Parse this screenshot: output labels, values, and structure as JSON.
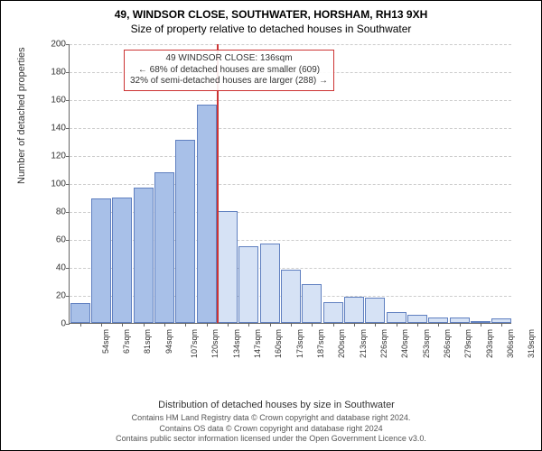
{
  "title_line1": "49, WINDSOR CLOSE, SOUTHWATER, HORSHAM, RH13 9XH",
  "title_line2": "Size of property relative to detached houses in Southwater",
  "chart": {
    "type": "bar",
    "ylabel": "Number of detached properties",
    "xlabel": "Distribution of detached houses by size in Southwater",
    "ylim": [
      0,
      200
    ],
    "ytick_step": 20,
    "background_color": "#ffffff",
    "grid_color": "#cccccc",
    "bar_fill_normal": "#d6e2f5",
    "bar_fill_highlight": "#a8c0e8",
    "bar_border": "#6080c0",
    "refline_color": "#cc3333",
    "categories": [
      "54sqm",
      "67sqm",
      "81sqm",
      "94sqm",
      "107sqm",
      "120sqm",
      "134sqm",
      "147sqm",
      "160sqm",
      "173sqm",
      "187sqm",
      "200sqm",
      "213sqm",
      "226sqm",
      "240sqm",
      "253sqm",
      "266sqm",
      "279sqm",
      "293sqm",
      "306sqm",
      "319sqm"
    ],
    "values": [
      14,
      89,
      90,
      97,
      108,
      131,
      156,
      80,
      55,
      57,
      38,
      28,
      15,
      19,
      18,
      8,
      6,
      4,
      4,
      1,
      3
    ],
    "highlight_until_index": 6,
    "refline_after_index": 6,
    "bar_width_ratio": 0.95,
    "label_fontsize": 11,
    "tick_fontsize": 10
  },
  "annotation": {
    "line1": "49 WINDSOR CLOSE: 136sqm",
    "line2": "← 68% of detached houses are smaller (609)",
    "line3": "32% of semi-detached houses are larger (288) →",
    "border_color": "#cc3333"
  },
  "footer": {
    "line1": "Contains HM Land Registry data © Crown copyright and database right 2024.",
    "line2": "Contains OS data © Crown copyright and database right 2024",
    "line3": "Contains public sector information licensed under the Open Government Licence v3.0."
  }
}
